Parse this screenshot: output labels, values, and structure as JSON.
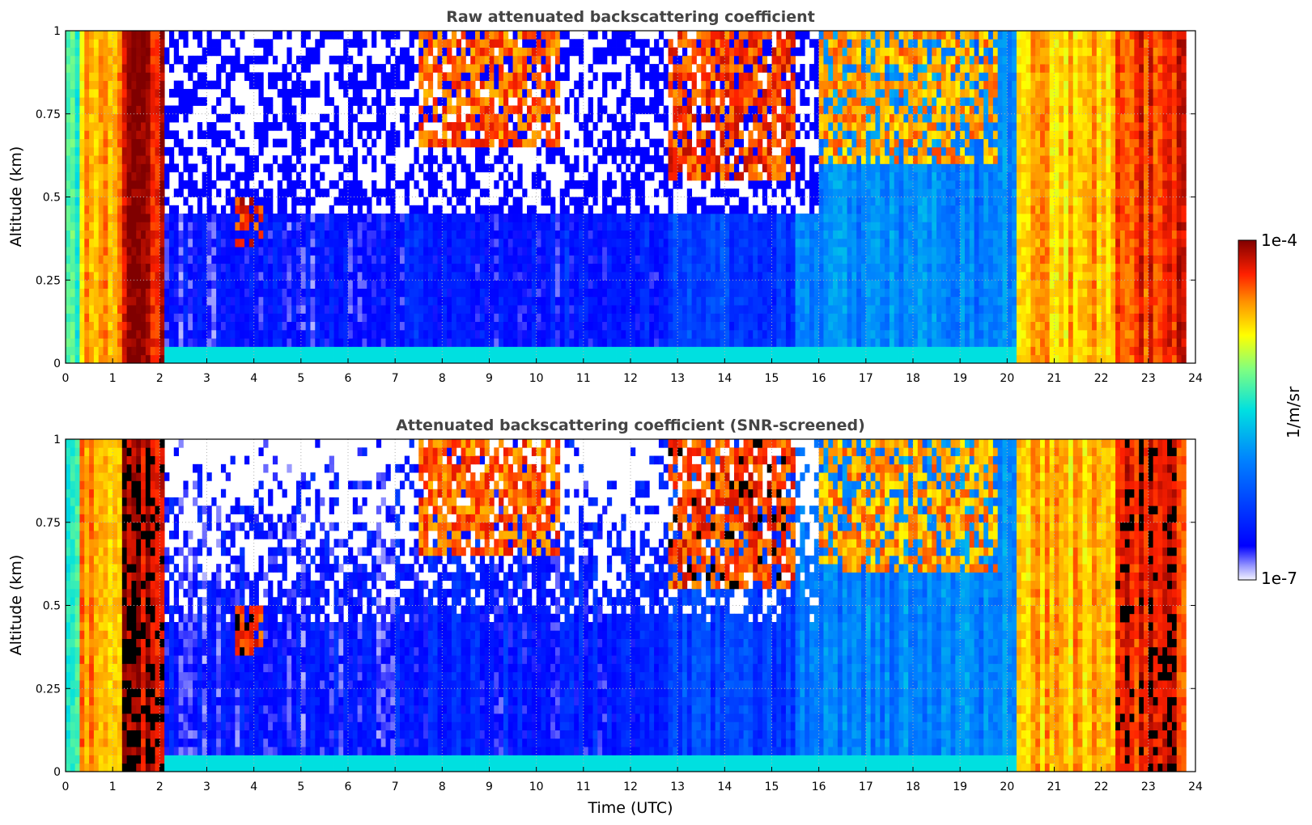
{
  "chart_data": [
    {
      "type": "heatmap",
      "title": "Raw attenuated backscattering coefficient",
      "xlabel": "",
      "ylabel": "Altitude (km)",
      "xlim": [
        0,
        24
      ],
      "ylim": [
        0,
        1
      ],
      "x_ticks": [
        "0",
        "1",
        "2",
        "3",
        "4",
        "5",
        "6",
        "7",
        "8",
        "9",
        "10",
        "11",
        "12",
        "13",
        "14",
        "15",
        "16",
        "17",
        "18",
        "19",
        "20",
        "21",
        "22",
        "23",
        "24"
      ],
      "y_ticks": [
        "0",
        "0.25",
        "0.5",
        "0.75",
        "1"
      ],
      "grid": true,
      "data_extent_hours": [
        0,
        23.8
      ],
      "regimes": [
        {
          "from": 0.0,
          "to": 0.3,
          "level": 0.55
        },
        {
          "from": 0.3,
          "to": 1.2,
          "level": 0.8
        },
        {
          "from": 1.2,
          "to": 2.1,
          "level": 0.95
        },
        {
          "from": 2.1,
          "to": 7.0,
          "level": 0.12
        },
        {
          "from": 7.0,
          "to": 12.8,
          "level": 0.15
        },
        {
          "from": 12.8,
          "to": 15.5,
          "level": 0.22
        },
        {
          "from": 15.5,
          "to": 20.2,
          "level": 0.35
        },
        {
          "from": 20.2,
          "to": 22.3,
          "level": 0.78
        },
        {
          "from": 22.3,
          "to": 23.8,
          "level": 0.9
        }
      ],
      "cloud_layers": [
        {
          "from": 7.5,
          "to": 10.5,
          "altitude_km": [
            0.65,
            1.0
          ],
          "level": 0.85
        },
        {
          "from": 12.8,
          "to": 15.5,
          "altitude_km": [
            0.55,
            1.0
          ],
          "level": 0.88
        },
        {
          "from": 16.0,
          "to": 19.8,
          "altitude_km": [
            0.6,
            1.0
          ],
          "level": 0.8
        },
        {
          "from": 3.6,
          "to": 4.2,
          "altitude_km": [
            0.35,
            0.5
          ],
          "level": 0.9
        }
      ],
      "noise_region": {
        "from": 2.1,
        "to": 16.0,
        "altitude_km": [
          0.45,
          1.0
        ]
      }
    },
    {
      "type": "heatmap",
      "title": "Attenuated backscattering coefficient (SNR-screened)",
      "xlabel": "Time (UTC)",
      "ylabel": "Altitude (km)",
      "xlim": [
        0,
        24
      ],
      "ylim": [
        0,
        1
      ],
      "x_ticks": [
        "0",
        "1",
        "2",
        "3",
        "4",
        "5",
        "6",
        "7",
        "8",
        "9",
        "10",
        "11",
        "12",
        "13",
        "14",
        "15",
        "16",
        "17",
        "18",
        "19",
        "20",
        "21",
        "22",
        "23",
        "24"
      ],
      "y_ticks": [
        "0",
        "0.25",
        "0.5",
        "0.75",
        "1"
      ],
      "grid": true,
      "screened": true
    }
  ],
  "colorbar": {
    "top_label": "1e-4",
    "bottom_label": "1e-7",
    "unit_label": "1/m/sr",
    "colormap": "jet"
  },
  "colors": {
    "title": "#444444",
    "grid": "#b0b0b0",
    "missing": "#ffffff"
  }
}
